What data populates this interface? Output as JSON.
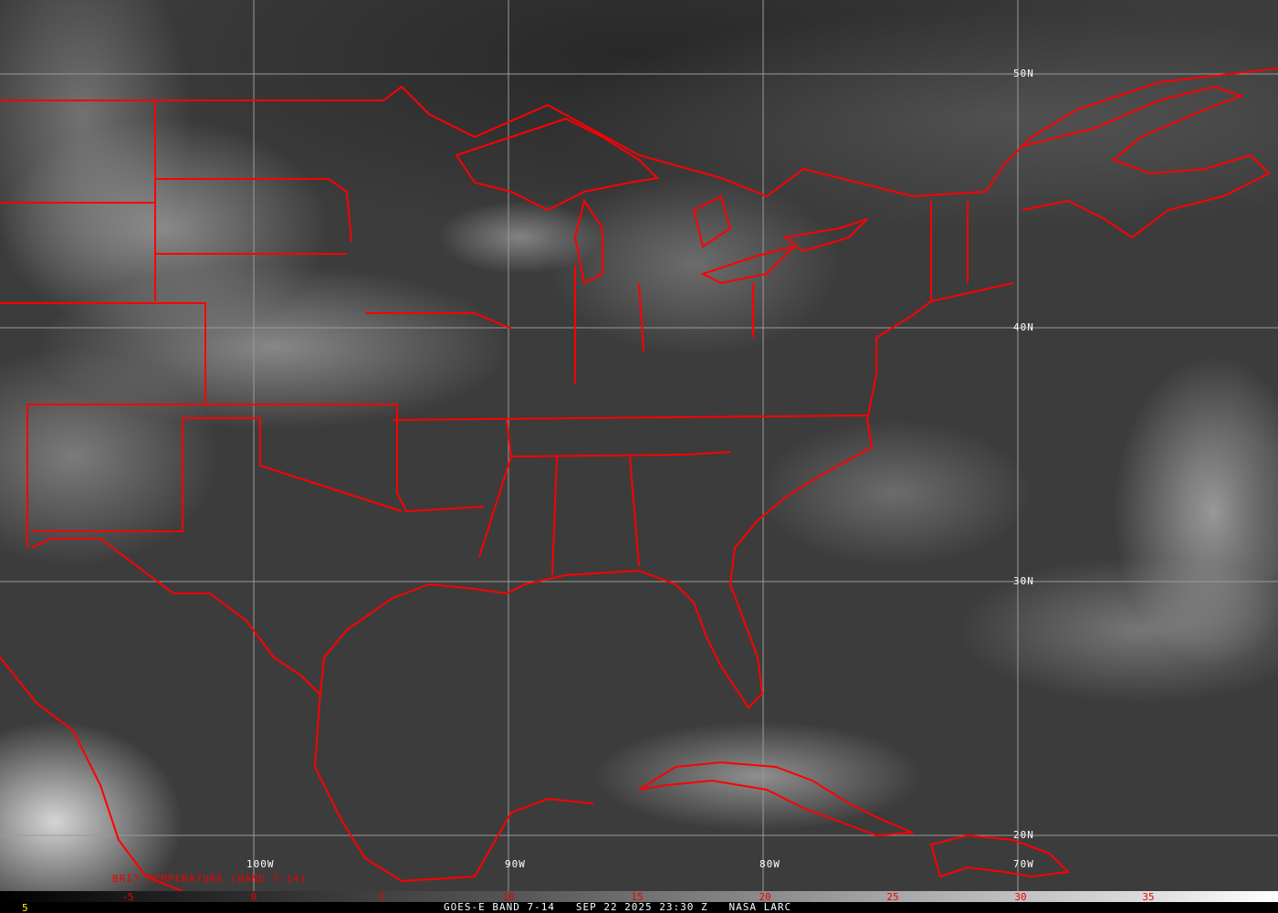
{
  "map": {
    "border_color": "#ff0000",
    "grid_color": "#a0a0a0",
    "latitude_labels": [
      "50N",
      "40N",
      "30N",
      "20N"
    ],
    "longitude_labels": [
      "100W",
      "90W",
      "80W",
      "70W"
    ]
  },
  "legend": {
    "title": "BRIT TEMPERATURE (BAND 7-14)",
    "ticks": [
      "-5",
      "0",
      "5",
      "10",
      "15",
      "20",
      "25",
      "30",
      "35"
    ]
  },
  "footer": {
    "frame": "5",
    "caption": "GOES-E BAND 7-14   SEP 22 2025 23:30 Z   NASA LARC"
  }
}
